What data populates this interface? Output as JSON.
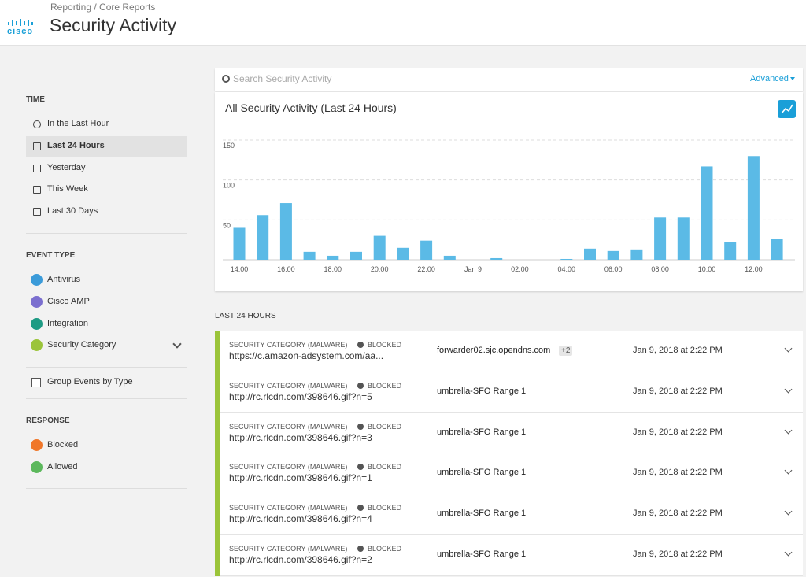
{
  "header": {
    "logo": "cisco",
    "breadcrumb": "Reporting / Core Reports",
    "title": "Security Activity"
  },
  "sidebar": {
    "time": {
      "title": "TIME",
      "items": [
        "In the Last Hour",
        "Last 24 Hours",
        "Yesterday",
        "This Week",
        "Last 30 Days"
      ]
    },
    "event_type": {
      "title": "EVENT TYPE",
      "items": [
        "Antivirus",
        "Cisco AMP",
        "Integration",
        "Security Category"
      ]
    },
    "group_events": "Group Events by Type",
    "response": {
      "title": "RESPONSE",
      "items": [
        "Blocked",
        "Allowed"
      ]
    }
  },
  "search": {
    "placeholder": "Search Security Activity",
    "advanced": "Advanced"
  },
  "chart_data": {
    "type": "bar",
    "title": "All Security Activity (Last 24 Hours)",
    "categories": [
      "14:00",
      null,
      "16:00",
      null,
      "18:00",
      null,
      "20:00",
      null,
      "22:00",
      null,
      "Jan 9",
      null,
      "02:00",
      null,
      "04:00",
      null,
      "06:00",
      null,
      "08:00",
      null,
      "10:00",
      null,
      "12:00",
      null
    ],
    "values": [
      40,
      56,
      71,
      10,
      5,
      10,
      30,
      15,
      24,
      5,
      0,
      2,
      0,
      0,
      1,
      14,
      11,
      13,
      53,
      53,
      117,
      22,
      130,
      26
    ],
    "color": "#5bbae6",
    "ylim": [
      0,
      150
    ],
    "yticks": [
      50,
      100,
      150
    ],
    "grid": true
  },
  "events": {
    "heading": "LAST 24 HOURS",
    "rows": [
      {
        "category": "SECURITY CATEGORY (MALWARE)",
        "status": "BLOCKED",
        "url": "https://c.amazon-adsystem.com/aa...",
        "source": "forwarder02.sjc.opendns.com",
        "badge": "+2",
        "time": "Jan 9, 2018 at 2:22 PM"
      },
      {
        "category": "SECURITY CATEGORY (MALWARE)",
        "status": "BLOCKED",
        "url": "http://rc.rlcdn.com/398646.gif?n=5",
        "source": "umbrella-SFO Range 1",
        "time": "Jan 9, 2018 at 2:22 PM"
      },
      {
        "category": "SECURITY CATEGORY (MALWARE)",
        "status": "BLOCKED",
        "url": "http://rc.rlcdn.com/398646.gif?n=3",
        "source": "umbrella-SFO Range 1",
        "time": "Jan 9, 2018 at 2:22 PM"
      },
      {
        "category": "SECURITY CATEGORY (MALWARE)",
        "status": "BLOCKED",
        "url": "http://rc.rlcdn.com/398646.gif?n=1",
        "source": "umbrella-SFO Range 1",
        "time": "Jan 9, 2018 at 2:22 PM"
      },
      {
        "category": "SECURITY CATEGORY (MALWARE)",
        "status": "BLOCKED",
        "url": "http://rc.rlcdn.com/398646.gif?n=4",
        "source": "umbrella-SFO Range 1",
        "time": "Jan 9, 2018 at 2:22 PM"
      },
      {
        "category": "SECURITY CATEGORY (MALWARE)",
        "status": "BLOCKED",
        "url": "http://rc.rlcdn.com/398646.gif?n=2",
        "source": "umbrella-SFO Range 1",
        "time": "Jan 9, 2018 at 2:22 PM"
      }
    ]
  }
}
